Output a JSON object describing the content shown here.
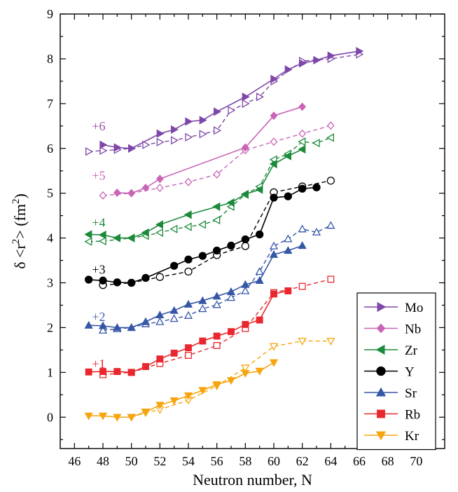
{
  "chart_data": {
    "type": "line",
    "xlabel": "Neutron number, N",
    "ylabel": "δ <r²> (fm²)",
    "ylabel_parts": {
      "prefix": "δ <r",
      "sup1": "2",
      "middle": "> (fm",
      "sup2": "2",
      "suffix": ")"
    },
    "xlim": [
      45,
      72
    ],
    "ylim": [
      -0.7,
      9
    ],
    "xticks": [
      46,
      48,
      50,
      52,
      54,
      56,
      58,
      60,
      62,
      64,
      66,
      68,
      70
    ],
    "yticks": [
      0,
      1,
      2,
      3,
      4,
      5,
      6,
      7,
      8,
      9
    ],
    "legend_position": "bottom-right",
    "grid": false,
    "offset_labels": [
      {
        "text": "+6",
        "x": 47.7,
        "y": 6.4,
        "color": "#9b4ea6"
      },
      {
        "text": "+5",
        "x": 47.7,
        "y": 5.3,
        "color": "#c964b6"
      },
      {
        "text": "+4",
        "x": 47.7,
        "y": 4.25,
        "color": "#1c8a3a"
      },
      {
        "text": "+3",
        "x": 47.7,
        "y": 3.2,
        "color": "#000000"
      },
      {
        "text": "+2",
        "x": 47.7,
        "y": 2.15,
        "color": "#4661ad"
      },
      {
        "text": "+1",
        "x": 47.7,
        "y": 1.1,
        "color": "#e8282e"
      }
    ],
    "series": [
      {
        "name": "Mo",
        "color": "#7e47a8",
        "marker": "tri-right",
        "solid": {
          "x": [
            48,
            49,
            50,
            52,
            53,
            54,
            55,
            56,
            58,
            60,
            61,
            62,
            63,
            64,
            66
          ],
          "y": [
            6.08,
            6.02,
            6.0,
            6.33,
            6.42,
            6.6,
            6.63,
            6.82,
            7.15,
            7.55,
            7.76,
            7.9,
            7.97,
            8.07,
            8.17
          ]
        },
        "dashed": {
          "x": [
            47,
            48,
            49,
            50,
            51,
            52,
            53,
            54,
            55,
            56,
            57,
            58,
            59,
            60,
            62,
            64,
            66
          ],
          "y": [
            5.93,
            5.95,
            5.97,
            6.0,
            6.08,
            6.14,
            6.18,
            6.25,
            6.32,
            6.4,
            6.85,
            7.0,
            7.15,
            7.5,
            7.95,
            8.0,
            8.1
          ]
        }
      },
      {
        "name": "Nb",
        "color": "#c964b6",
        "marker": "diamond",
        "solid": {
          "x": [
            49,
            50,
            51,
            52,
            58,
            60,
            62
          ],
          "y": [
            5.01,
            5.0,
            5.12,
            5.32,
            6.02,
            6.73,
            6.93
          ]
        },
        "dashed": {
          "x": [
            48,
            50,
            52,
            54,
            56,
            58,
            60,
            62,
            64
          ],
          "y": [
            4.95,
            5.0,
            5.12,
            5.25,
            5.42,
            5.96,
            6.15,
            6.33,
            6.51
          ]
        }
      },
      {
        "name": "Zr",
        "color": "#1c8a3a",
        "marker": "tri-left",
        "solid": {
          "x": [
            47,
            48,
            49,
            50,
            51,
            52,
            54,
            56,
            57,
            58,
            59,
            60,
            61,
            62
          ],
          "y": [
            4.08,
            4.07,
            4.0,
            4.0,
            4.12,
            4.3,
            4.52,
            4.7,
            4.79,
            4.98,
            5.08,
            5.65,
            5.83,
            5.98
          ]
        },
        "dashed": {
          "x": [
            47,
            48,
            50,
            51,
            52,
            53,
            54,
            55,
            56,
            57,
            58,
            59,
            60,
            61,
            62,
            63,
            64
          ],
          "y": [
            3.92,
            3.93,
            4.0,
            4.05,
            4.12,
            4.2,
            4.25,
            4.3,
            4.4,
            4.7,
            4.97,
            5.15,
            5.75,
            5.88,
            6.15,
            6.12,
            6.24
          ]
        }
      },
      {
        "name": "Y",
        "color": "#000000",
        "marker": "circle",
        "solid": {
          "x": [
            47,
            48,
            49,
            50,
            51,
            53,
            54,
            55,
            56,
            57,
            58,
            59,
            60,
            61,
            62,
            63
          ],
          "y": [
            3.07,
            3.05,
            3.01,
            3.0,
            3.11,
            3.38,
            3.52,
            3.6,
            3.72,
            3.83,
            3.97,
            4.08,
            4.9,
            4.93,
            5.1,
            5.13
          ]
        },
        "dashed": {
          "x": [
            48,
            50,
            52,
            54,
            56,
            58,
            60,
            62,
            64
          ],
          "y": [
            2.95,
            3.0,
            3.13,
            3.25,
            3.62,
            3.82,
            5.02,
            5.15,
            5.28
          ]
        }
      },
      {
        "name": "Sr",
        "color": "#3656a6",
        "marker": "tri-up",
        "solid": {
          "x": [
            47,
            48,
            49,
            50,
            51,
            52,
            53,
            54,
            55,
            56,
            57,
            58,
            59,
            60,
            61,
            62
          ],
          "y": [
            2.05,
            2.04,
            2.0,
            2.0,
            2.13,
            2.28,
            2.38,
            2.52,
            2.6,
            2.7,
            2.8,
            2.96,
            3.05,
            3.63,
            3.72,
            3.83
          ]
        },
        "dashed": {
          "x": [
            48,
            49,
            50,
            51,
            52,
            53,
            54,
            55,
            56,
            57,
            58,
            59,
            60,
            61,
            62,
            63,
            64
          ],
          "y": [
            1.94,
            1.97,
            2.0,
            2.08,
            2.13,
            2.2,
            2.27,
            2.42,
            2.51,
            2.67,
            2.82,
            3.25,
            3.82,
            3.98,
            4.2,
            4.13,
            4.28
          ]
        }
      },
      {
        "name": "Rb",
        "color": "#e8282e",
        "marker": "square",
        "solid": {
          "x": [
            47,
            48,
            49,
            50,
            51,
            52,
            53,
            54,
            55,
            56,
            57,
            58,
            59,
            60,
            61
          ],
          "y": [
            1.01,
            1.02,
            1.02,
            1.0,
            1.13,
            1.3,
            1.43,
            1.55,
            1.7,
            1.81,
            1.91,
            2.07,
            2.17,
            2.75,
            2.82
          ]
        },
        "dashed": {
          "x": [
            48,
            50,
            52,
            54,
            56,
            58,
            60,
            62,
            64
          ],
          "y": [
            0.95,
            1.0,
            1.2,
            1.38,
            1.6,
            1.98,
            2.78,
            2.92,
            3.08
          ]
        }
      },
      {
        "name": "Kr",
        "color": "#f6a50e",
        "marker": "tri-down",
        "solid": {
          "x": [
            47,
            48,
            49,
            50,
            51,
            52,
            53,
            54,
            55,
            56,
            57,
            58,
            59,
            60
          ],
          "y": [
            0.03,
            0.03,
            0.0,
            0.0,
            0.12,
            0.27,
            0.37,
            0.48,
            0.6,
            0.73,
            0.82,
            0.98,
            1.03,
            1.22
          ]
        },
        "dashed": {
          "x": [
            50,
            51,
            52,
            54,
            56,
            58,
            60,
            62,
            64
          ],
          "y": [
            0.0,
            0.1,
            0.17,
            0.38,
            0.7,
            1.1,
            1.58,
            1.7,
            1.7
          ]
        }
      }
    ]
  }
}
